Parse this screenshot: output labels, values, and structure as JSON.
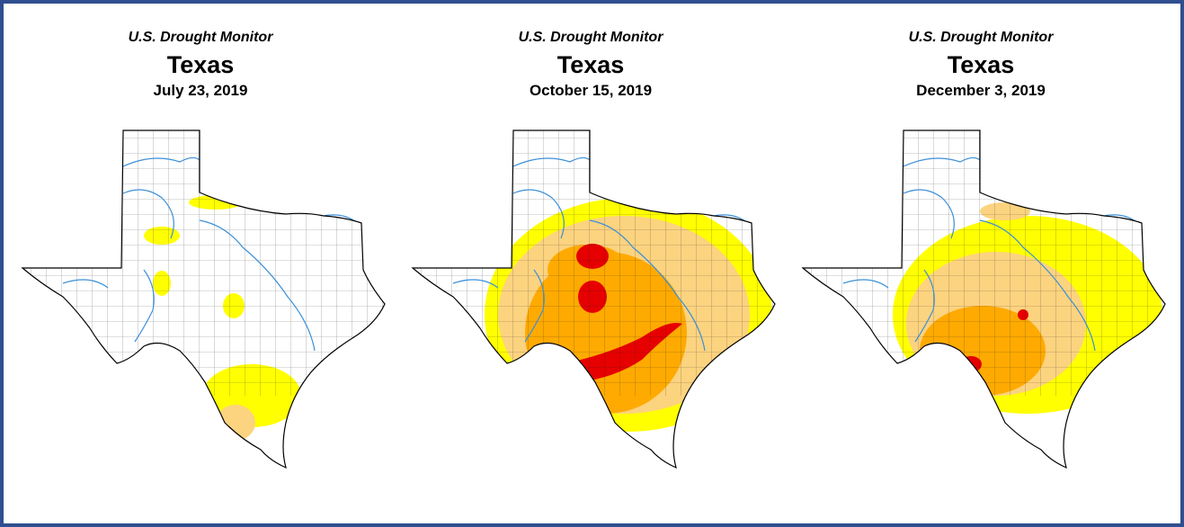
{
  "panels": [
    {
      "source": "U.S. Drought Monitor",
      "title": "Texas",
      "date": "July 23, 2019"
    },
    {
      "source": "U.S. Drought Monitor",
      "title": "Texas",
      "date": "October 15, 2019"
    },
    {
      "source": "U.S. Drought Monitor",
      "title": "Texas",
      "date": "December 3, 2019"
    }
  ]
}
